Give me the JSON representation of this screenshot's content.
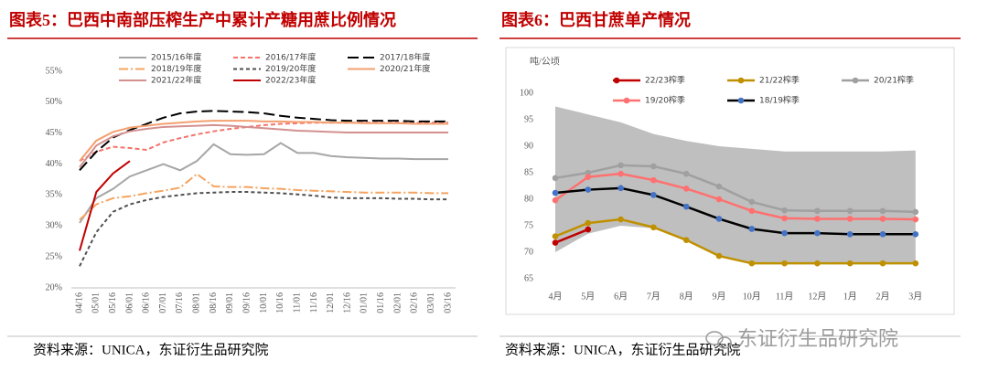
{
  "chart_data": [
    {
      "type": "line",
      "title": "图表5：巴西中南部压榨生产中累计产糖用蔗比例情况",
      "source": "资料来源：UNICA，东证衍生品研究院",
      "categories": [
        "04/16",
        "05/01",
        "05/16",
        "06/01",
        "06/16",
        "07/01",
        "07/16",
        "08/01",
        "08/16",
        "09/01",
        "09/16",
        "10/01",
        "10/16",
        "11/01",
        "11/16",
        "12/01",
        "12/16",
        "01/01",
        "01/16",
        "02/01",
        "02/16",
        "03/01",
        "03/16"
      ],
      "ylim": [
        20,
        55
      ],
      "yticks": [
        {
          "value": 20,
          "label": "20%"
        },
        {
          "value": 25,
          "label": "25%"
        },
        {
          "value": 30,
          "label": "30%"
        },
        {
          "value": 35,
          "label": "35%"
        },
        {
          "value": 40,
          "label": "40%"
        },
        {
          "value": 45,
          "label": "45%"
        },
        {
          "value": 50,
          "label": "50%"
        },
        {
          "value": 55,
          "label": "55%"
        }
      ],
      "grid": false,
      "legend": "top",
      "series": [
        {
          "name": "2015/16年度",
          "color": "#a6a6a6",
          "dash": "solid",
          "values": [
            30.5,
            34.5,
            36,
            38,
            39,
            40,
            39,
            40.5,
            43.2,
            41.6,
            41.5,
            41.6,
            43.4,
            41.8,
            41.8,
            41.3,
            41.1,
            41,
            40.9,
            40.9,
            40.8,
            40.8,
            40.8
          ]
        },
        {
          "name": "2016/17年度",
          "color": "#f4736b",
          "dash": "dashed",
          "values": [
            40.5,
            42,
            42.8,
            42.6,
            42.3,
            43.5,
            44.2,
            44.8,
            45.3,
            45.7,
            46,
            46.3,
            46.5,
            46.6,
            46.7,
            46.7,
            46.7,
            46.7,
            46.7,
            46.7,
            46.7,
            46.7,
            46.7
          ]
        },
        {
          "name": "2017/18年度",
          "color": "#000000",
          "dash": "longdash",
          "values": [
            39,
            42,
            44.3,
            45.5,
            46.5,
            47.5,
            48.2,
            48.5,
            48.6,
            48.5,
            48.4,
            48.2,
            47.8,
            47.5,
            47.3,
            47.1,
            47,
            47,
            47,
            47,
            46.9,
            46.9,
            46.9
          ]
        },
        {
          "name": "2018/19年度",
          "color": "#f4a460",
          "dash": "dashdot",
          "values": [
            31,
            33.5,
            34.5,
            34.8,
            35.3,
            35.7,
            36.2,
            38.4,
            36.4,
            36.3,
            36.3,
            36.1,
            36,
            35.8,
            35.7,
            35.6,
            35.5,
            35.4,
            35.4,
            35.4,
            35.4,
            35.3,
            35.3
          ]
        },
        {
          "name": "2019/20年度",
          "color": "#505050",
          "dash": "short",
          "values": [
            23.5,
            29,
            32.3,
            33.5,
            34.2,
            34.7,
            35,
            35.3,
            35.4,
            35.5,
            35.5,
            35.4,
            35.3,
            35.1,
            34.9,
            34.6,
            34.5,
            34.5,
            34.5,
            34.4,
            34.4,
            34.3,
            34.3
          ]
        },
        {
          "name": "2020/21年度",
          "color": "#f4a070",
          "dash": "solid",
          "values": [
            40.5,
            43.8,
            45.2,
            45.9,
            46.2,
            46.5,
            46.7,
            46.9,
            47,
            47,
            47,
            46.9,
            46.9,
            46.8,
            46.8,
            46.7,
            46.7,
            46.6,
            46.6,
            46.6,
            46.5,
            46.5,
            46.5
          ]
        },
        {
          "name": "2021/22年度",
          "color": "#d4908f",
          "dash": "solid",
          "values": [
            39.5,
            43,
            44.5,
            45.3,
            45.7,
            46,
            46.1,
            46.2,
            46.3,
            46.2,
            46,
            45.8,
            45.6,
            45.4,
            45.3,
            45.2,
            45.1,
            45.1,
            45.1,
            45.1,
            45.1,
            45.1,
            45.1
          ]
        },
        {
          "name": "2022/23年度",
          "color": "#c00000",
          "dash": "solid",
          "values": [
            26,
            35.5,
            38.5,
            40.5,
            null,
            null,
            null,
            null,
            null,
            null,
            null,
            null,
            null,
            null,
            null,
            null,
            null,
            null,
            null,
            null,
            null,
            null,
            null
          ]
        }
      ]
    },
    {
      "type": "line",
      "title": "图表6：巴西甘蔗单产情况",
      "source": "资料来源：UNICA，东证衍生品研究院",
      "ylabel": "吨/公顷",
      "categories": [
        "4月",
        "5月",
        "6月",
        "7月",
        "8月",
        "9月",
        "10月",
        "11月",
        "12月",
        "1月",
        "2月",
        "3月"
      ],
      "ylim": [
        65,
        100
      ],
      "yticks": [
        65,
        70,
        75,
        80,
        85,
        90,
        95,
        100
      ],
      "grid": false,
      "legend": "top",
      "band": {
        "color": "#bfbfbf",
        "upper": [
          97.5,
          96,
          94.5,
          92.3,
          91,
          90,
          89.5,
          89,
          89,
          89,
          89,
          89.2
        ],
        "lower": [
          70,
          73.5,
          75,
          74.5,
          72.5,
          69.5,
          68,
          68,
          68,
          68,
          68,
          68
        ]
      },
      "series": [
        {
          "name": "22/23榨季",
          "color": "#c00000",
          "marker": "circle",
          "values": [
            71.8,
            74.3,
            null,
            null,
            null,
            null,
            null,
            null,
            null,
            null,
            null,
            null
          ]
        },
        {
          "name": "21/22榨季",
          "color": "#bf9000",
          "marker": "circle",
          "values": [
            73,
            75.5,
            76.2,
            74.7,
            72.3,
            69.3,
            67.9,
            67.9,
            67.9,
            67.9,
            67.9,
            67.9
          ]
        },
        {
          "name": "20/21榨季",
          "color": "#a0a0a0",
          "marker": "circle",
          "values": [
            84,
            85,
            86.4,
            86.2,
            84.8,
            82.4,
            79.5,
            77.9,
            77.8,
            77.8,
            77.8,
            77.6
          ]
        },
        {
          "name": "19/20榨季",
          "color": "#ff7070",
          "marker": "circle",
          "values": [
            79.8,
            84.2,
            84.8,
            83.6,
            82,
            80,
            77.8,
            76.4,
            76.3,
            76.3,
            76.3,
            76.2
          ]
        },
        {
          "name": "18/19榨季",
          "color": "#000000",
          "marker": "circle",
          "marker_color": "#4472c4",
          "values": [
            81.2,
            81.8,
            82.1,
            80.8,
            78.6,
            76.3,
            74.4,
            73.6,
            73.6,
            73.4,
            73.4,
            73.4
          ]
        }
      ]
    }
  ],
  "watermark": "东证衍生品研究院"
}
